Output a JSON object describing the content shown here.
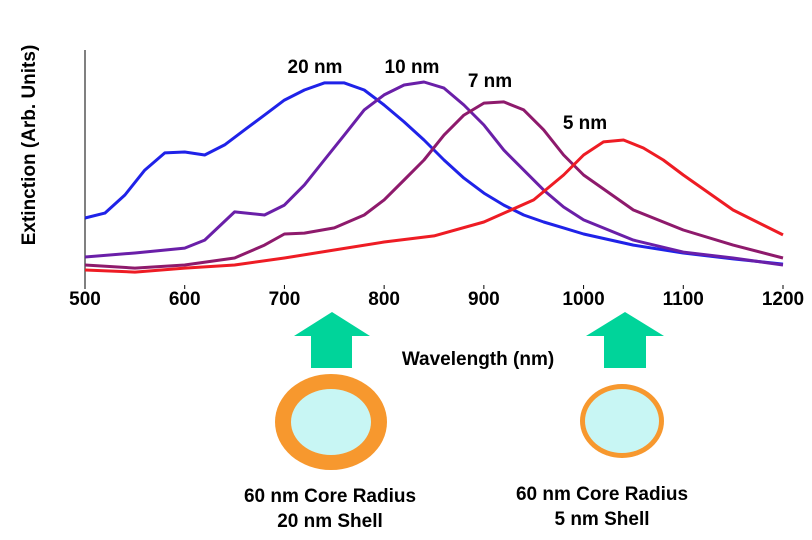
{
  "chart_data": {
    "type": "line",
    "xlabel": "Wavelength (nm)",
    "ylabel": "Extinction (Arb. Units)",
    "xlim": [
      500,
      1200
    ],
    "xticks": [
      500,
      600,
      700,
      800,
      900,
      1000,
      1100,
      1200
    ],
    "ylim": [
      0,
      100
    ],
    "series": [
      {
        "name": "20 nm",
        "color": "#1f22e8",
        "x": [
          500,
          520,
          540,
          560,
          580,
          600,
          620,
          640,
          660,
          680,
          700,
          720,
          740,
          760,
          780,
          800,
          820,
          840,
          860,
          880,
          900,
          920,
          940,
          960,
          980,
          1000,
          1050,
          1100,
          1150,
          1200
        ],
        "values": [
          28.5,
          30.6,
          38.3,
          48.9,
          56.2,
          56.6,
          55.3,
          59.6,
          66,
          72.3,
          78.7,
          83,
          86,
          86,
          83,
          76.6,
          69.4,
          61.7,
          53.2,
          45.5,
          39.1,
          34,
          29.8,
          26.8,
          24.3,
          21.7,
          17,
          13.6,
          11.1,
          8.9
        ]
      },
      {
        "name": "10 nm",
        "color": "#6a1fa8",
        "x": [
          500,
          550,
          600,
          620,
          650,
          680,
          700,
          720,
          740,
          760,
          780,
          800,
          820,
          840,
          860,
          880,
          900,
          920,
          940,
          960,
          980,
          1000,
          1050,
          1100,
          1150,
          1200
        ],
        "values": [
          11.9,
          13.6,
          15.7,
          19.1,
          31.1,
          29.8,
          34,
          42.6,
          53.2,
          63.8,
          74.5,
          80.9,
          85.1,
          86.4,
          83.8,
          76.6,
          68.1,
          57.4,
          48.9,
          40.4,
          33.2,
          27.7,
          19.1,
          14,
          11.5,
          8.5
        ]
      },
      {
        "name": "7 nm",
        "color": "#8e1a6c",
        "x": [
          500,
          550,
          600,
          650,
          680,
          700,
          720,
          750,
          780,
          800,
          820,
          840,
          860,
          880,
          900,
          920,
          940,
          960,
          980,
          1000,
          1050,
          1100,
          1150,
          1200
        ],
        "values": [
          8.5,
          7.2,
          8.5,
          11.5,
          17,
          21.7,
          22.1,
          24.3,
          29.8,
          36.2,
          44.7,
          53.2,
          63.8,
          72.3,
          77.4,
          77.9,
          74.5,
          66,
          55.3,
          46.8,
          31.9,
          23.4,
          17,
          11.5
        ]
      },
      {
        "name": "5 nm",
        "color": "#ee1c24",
        "x": [
          500,
          550,
          600,
          650,
          700,
          750,
          800,
          850,
          900,
          950,
          980,
          1000,
          1020,
          1040,
          1060,
          1080,
          1100,
          1150,
          1200
        ],
        "values": [
          6.4,
          5.5,
          7.2,
          8.5,
          11.5,
          14.9,
          18.3,
          20.9,
          26.8,
          36.2,
          46.8,
          55.3,
          60.9,
          61.7,
          58.3,
          53.2,
          46.8,
          31.9,
          21.3
        ]
      }
    ],
    "annotations": [
      {
        "line1": "60 nm Core Radius",
        "line2": "20 nm Shell"
      },
      {
        "line1": "60 nm Core Radius",
        "line2": "5 nm Shell"
      }
    ]
  }
}
